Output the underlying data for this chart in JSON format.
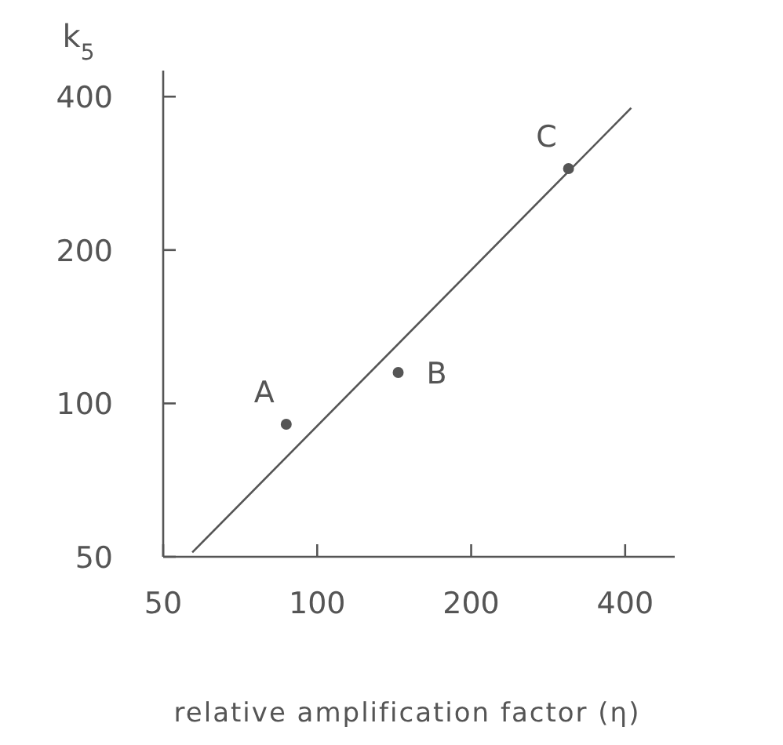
{
  "chart_data": {
    "type": "scatter",
    "xlabel": "relative amplification factor (η)",
    "ylabel": "k$_{5}$",
    "log": "xy",
    "grid": false,
    "xlim": [
      50,
      500
    ],
    "ylim": [
      50,
      450
    ],
    "xticks": [
      50,
      100,
      200,
      400
    ],
    "yticks": [
      50,
      100,
      200,
      400
    ],
    "series": [
      {
        "color": "#555555",
        "marker": "circle",
        "x": [
          87,
          144,
          310
        ],
        "values": [
          91,
          115,
          289
        ]
      },
      {
        "type": "line",
        "color": "#555555",
        "marker": "none",
        "line_style": "solid",
        "x": [
          57,
          411
        ],
        "values": [
          51,
          380
        ]
      }
    ],
    "annotations": [
      {
        "text": "A",
        "x": 87,
        "y": 91
      },
      {
        "text": "B",
        "x": 144,
        "y": 115
      },
      {
        "text": "C",
        "x": 310,
        "y": 289
      }
    ]
  }
}
